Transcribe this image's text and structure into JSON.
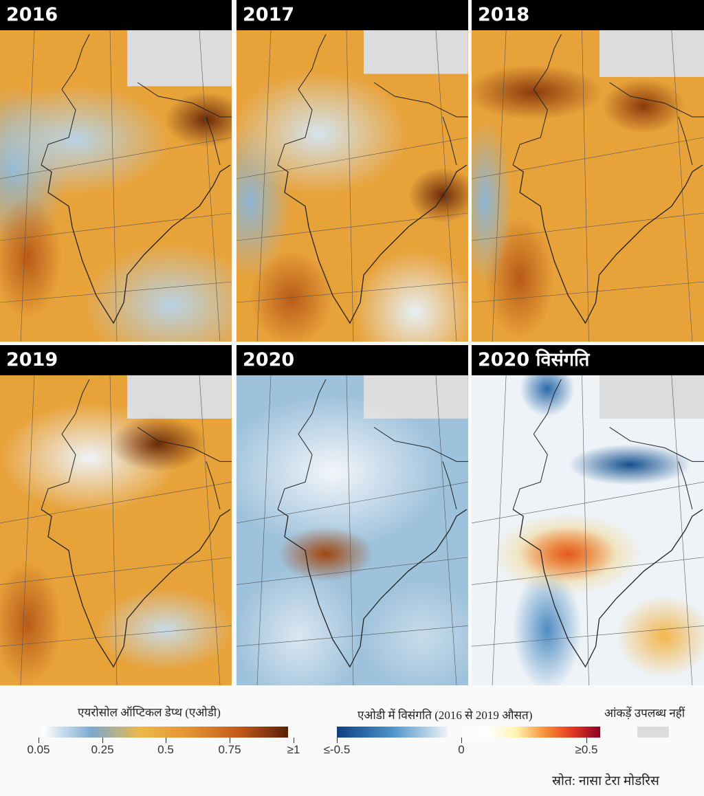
{
  "panels": [
    {
      "title": "2016",
      "type": "aod"
    },
    {
      "title": "2017",
      "type": "aod"
    },
    {
      "title": "2018",
      "type": "aod"
    },
    {
      "title": "2019",
      "type": "aod"
    },
    {
      "title": "2020",
      "type": "aod"
    },
    {
      "title": "2020 विसंगति",
      "type": "anomaly"
    }
  ],
  "legend": {
    "aod": {
      "title": "एयरोसोल ऑप्टिकल डेप्थ (एओडी)",
      "ticks": [
        "0.05",
        "0.25",
        "0.5",
        "0.75",
        "≥1"
      ],
      "colors": [
        "#ffffff",
        "#7ba9d0",
        "#ecb94a",
        "#e39232",
        "#c25a1c",
        "#5a1f05"
      ]
    },
    "anomaly": {
      "title": "एओडी में विसंगति  (2016 से 2019 औसत)",
      "ticks": [
        "≤-0.5",
        "0",
        "≥0.5"
      ],
      "colors": [
        "#0d3f80",
        "#4d93c9",
        "#eef3f8",
        "#ffffff",
        "#fff3b0",
        "#f6923a",
        "#e23a22",
        "#8a0025"
      ]
    },
    "no_data": {
      "label": "आंकड़ें उपलब्ध नहीं",
      "color": "#dcdcdc"
    }
  },
  "source": "स्रोत: नासा टेरा मोडरिस"
}
